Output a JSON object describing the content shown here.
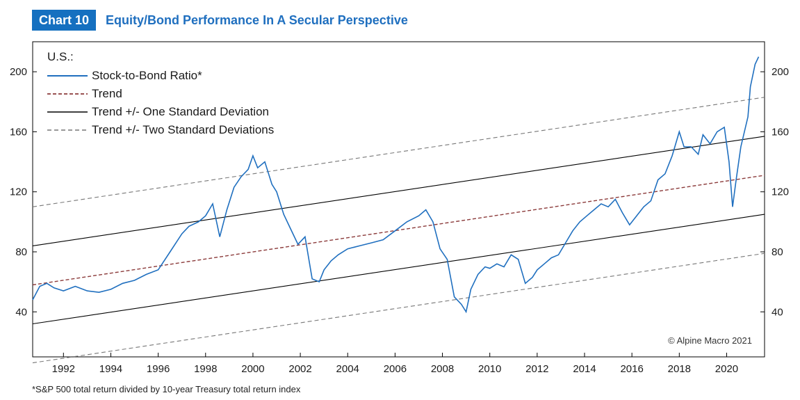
{
  "header": {
    "number": "Chart 10",
    "title": "Equity/Bond Performance In A Secular Perspective"
  },
  "footnote": "*S&P 500 total return divided by 10-year Treasury total return index",
  "copyright": "© Alpine Macro 2021",
  "colors": {
    "accent": "#1570c0",
    "series": "#1f6fbf",
    "trend": "#8b3a3a",
    "band1": "#000000",
    "band2": "#777777"
  },
  "chart_data": {
    "type": "line",
    "legend_title": "U.S.:",
    "legend_position": "top-left",
    "grid": false,
    "xlim": [
      1990.7,
      2021.6
    ],
    "ylim": [
      10,
      220
    ],
    "x_ticks": [
      1992,
      1994,
      1996,
      1998,
      2000,
      2002,
      2004,
      2006,
      2008,
      2010,
      2012,
      2014,
      2016,
      2018,
      2020
    ],
    "x_tick_labels": [
      "1992",
      "1994",
      "1996",
      "1998",
      "2000",
      "2002",
      "2004",
      "2006",
      "2008",
      "2010",
      "2012",
      "2014",
      "2016",
      "2018",
      "2020"
    ],
    "y_ticks": [
      40,
      80,
      120,
      160,
      200
    ],
    "y_tick_labels": [
      "40",
      "80",
      "120",
      "160",
      "200"
    ],
    "series": [
      {
        "name": "Stock-to-Bond Ratio*",
        "style": "solid",
        "x": [
          1990.7,
          1991.0,
          1991.3,
          1991.6,
          1992.0,
          1992.5,
          1993.0,
          1993.5,
          1994.0,
          1994.5,
          1995.0,
          1995.5,
          1996.0,
          1996.5,
          1997.0,
          1997.3,
          1997.7,
          1998.0,
          1998.3,
          1998.6,
          1998.9,
          1999.2,
          1999.5,
          1999.8,
          2000.0,
          2000.2,
          2000.5,
          2000.8,
          2001.0,
          2001.3,
          2001.6,
          2001.9,
          2002.2,
          2002.5,
          2002.8,
          2003.0,
          2003.3,
          2003.6,
          2004.0,
          2004.5,
          2005.0,
          2005.5,
          2006.0,
          2006.5,
          2007.0,
          2007.3,
          2007.6,
          2007.9,
          2008.2,
          2008.5,
          2008.8,
          2009.0,
          2009.2,
          2009.5,
          2009.8,
          2010.0,
          2010.3,
          2010.6,
          2010.9,
          2011.2,
          2011.5,
          2011.8,
          2012.0,
          2012.3,
          2012.6,
          2012.9,
          2013.2,
          2013.5,
          2013.8,
          2014.1,
          2014.4,
          2014.7,
          2015.0,
          2015.3,
          2015.6,
          2015.9,
          2016.2,
          2016.5,
          2016.8,
          2017.1,
          2017.4,
          2017.7,
          2018.0,
          2018.2,
          2018.5,
          2018.8,
          2019.0,
          2019.3,
          2019.6,
          2019.9,
          2020.1,
          2020.25,
          2020.4,
          2020.6,
          2020.9,
          2021.0,
          2021.2,
          2021.35
        ],
        "y": [
          48,
          57,
          59,
          56,
          54,
          57,
          54,
          53,
          55,
          59,
          61,
          65,
          68,
          80,
          92,
          97,
          100,
          104,
          112,
          90,
          108,
          123,
          130,
          135,
          144,
          136,
          140,
          125,
          120,
          105,
          95,
          85,
          90,
          62,
          60,
          68,
          74,
          78,
          82,
          84,
          86,
          88,
          94,
          100,
          104,
          108,
          100,
          82,
          75,
          50,
          45,
          40,
          55,
          65,
          70,
          69,
          72,
          70,
          78,
          75,
          59,
          63,
          68,
          72,
          76,
          78,
          86,
          94,
          100,
          104,
          108,
          112,
          110,
          115,
          106,
          98,
          104,
          110,
          114,
          128,
          132,
          144,
          160,
          150,
          150,
          145,
          158,
          152,
          160,
          163,
          140,
          110,
          128,
          150,
          170,
          190,
          205,
          210
        ]
      },
      {
        "name": "Trend",
        "style": "dashed",
        "x": [
          1990.7,
          2021.6
        ],
        "y": [
          58,
          131
        ]
      },
      {
        "name": "Trend +/- One Standard Deviation",
        "style": "solid-thin",
        "x": [
          1990.7,
          2021.6
        ],
        "y": [
          84,
          157
        ]
      },
      {
        "name": "",
        "style": "solid-thin",
        "x": [
          1990.7,
          2021.6
        ],
        "y": [
          32,
          105
        ]
      },
      {
        "name": "Trend +/- Two Standard Deviations",
        "style": "dashed-thin",
        "x": [
          1990.7,
          2021.6
        ],
        "y": [
          110,
          183
        ]
      },
      {
        "name": "",
        "style": "dashed-thin",
        "x": [
          1990.7,
          2021.6
        ],
        "y": [
          6,
          79
        ]
      }
    ]
  }
}
